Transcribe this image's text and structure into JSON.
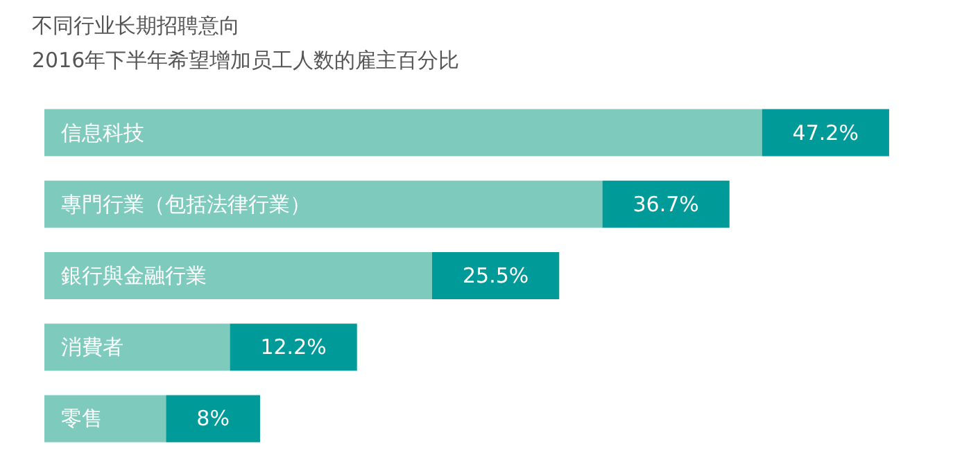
{
  "chart_data": {
    "type": "bar",
    "orientation": "horizontal",
    "title": "不同行业长期招聘意向",
    "subtitle": "2016年下半年希望增加员工人数的雇主百分比",
    "categories": [
      "信息科技",
      "專門行業（包括法律行業）",
      "銀行與金融行業",
      "消費者",
      "零售"
    ],
    "values": [
      47.2,
      36.7,
      25.5,
      12.2,
      8
    ],
    "value_labels": [
      "47.2%",
      "36.7%",
      "25.5%",
      "12.2%",
      "8%"
    ],
    "color": "#7ecbbd"
  }
}
